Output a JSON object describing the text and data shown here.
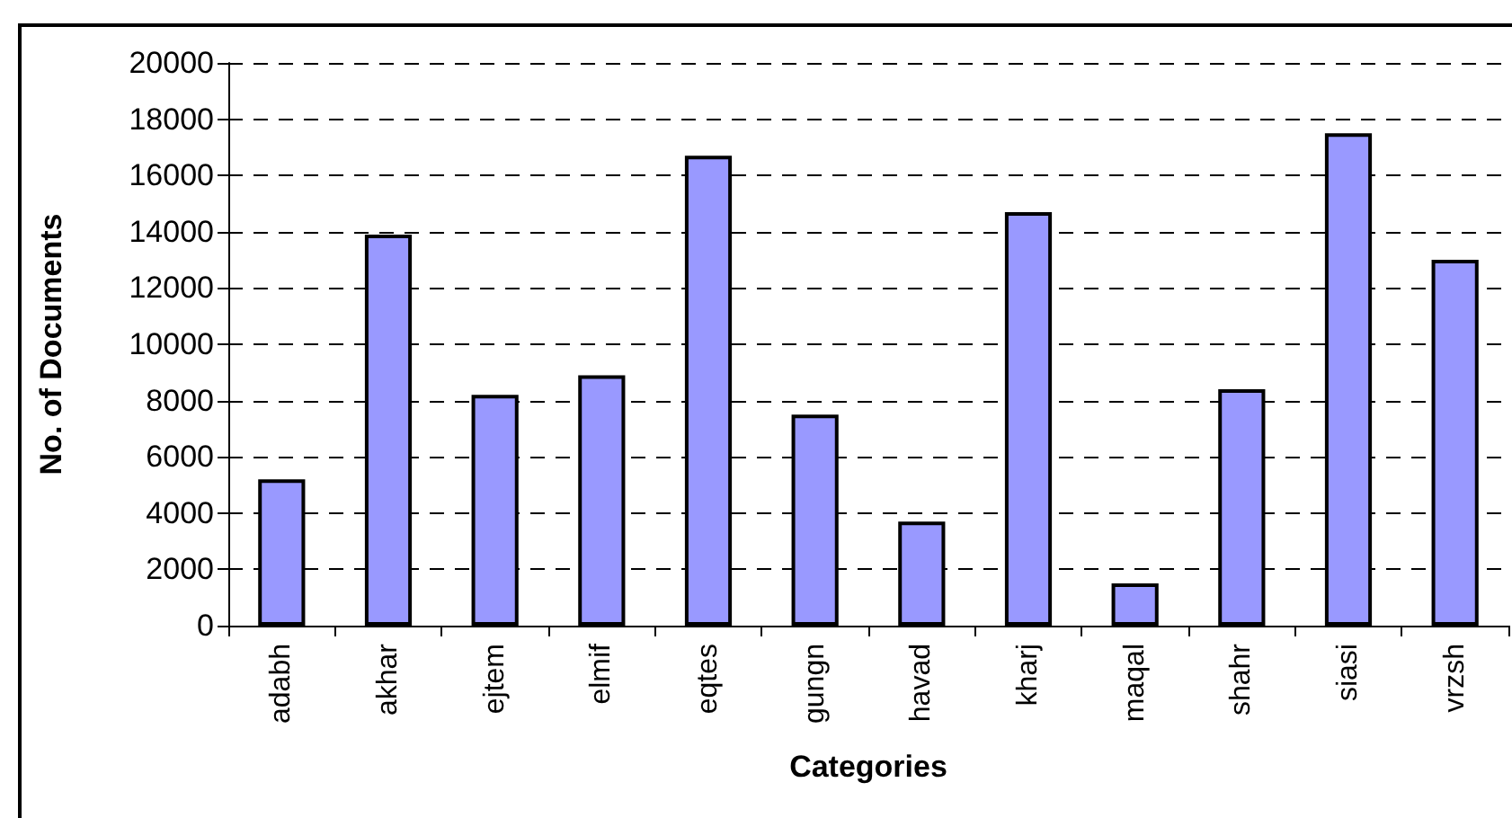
{
  "chart_data": {
    "type": "bar",
    "xlabel": "Categories",
    "ylabel": "No. of Documents",
    "categories": [
      "adabh",
      "akhar",
      "ejtem",
      "elmif",
      "eqtes",
      "gungn",
      "havad",
      "kharj",
      "maqal",
      "shahr",
      "siasi",
      "vrzsh"
    ],
    "values": [
      5200,
      13900,
      8200,
      8900,
      16700,
      7500,
      3700,
      14700,
      1500,
      8400,
      17500,
      13000
    ],
    "color": "#9999ff",
    "ylim": [
      0,
      20000
    ],
    "yticks": [
      0,
      2000,
      4000,
      6000,
      8000,
      10000,
      12000,
      14000,
      16000,
      18000,
      20000
    ],
    "grid": "y"
  }
}
